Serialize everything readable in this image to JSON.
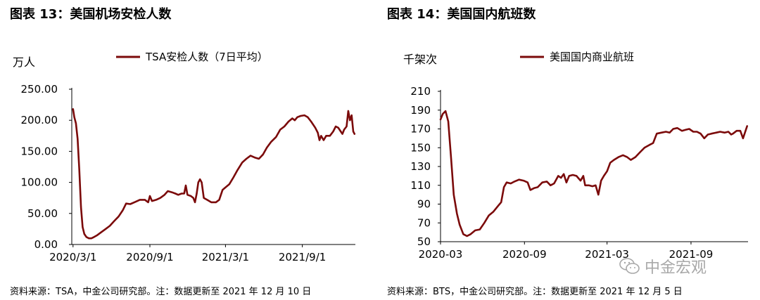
{
  "figures": [
    {
      "title": "图表 13：美国机场安检人数",
      "source": "资料来源：TSA，中金公司研究部。注：数据更新至 2021 年 12 月 10 日"
    },
    {
      "title": "图表 14：美国国内航班数",
      "source": "资料来源：BTS，中金公司研究部。注：数据更新至 2021 年 12 月 5 日"
    }
  ],
  "watermark": {
    "text": "中金宏观",
    "icon": "wechat-icon",
    "color": "#9a9a9a"
  },
  "series_color": "#7b0a0a",
  "chart_data": [
    {
      "type": "line",
      "ylabel": "万人",
      "ylim": [
        0,
        250
      ],
      "yticks": [
        "0.00",
        "50.00",
        "100.00",
        "150.00",
        "200.00",
        "250.00"
      ],
      "xticks": [
        "2020/3/1",
        "2020/9/1",
        "2021/3/1",
        "2021/9/1"
      ],
      "legend_position": "top",
      "series": [
        {
          "name": "TSA安检人数（7日平均）",
          "values": [
            [
              "2020-03-01",
              218
            ],
            [
              "2020-03-04",
              205
            ],
            [
              "2020-03-08",
              195
            ],
            [
              "2020-03-12",
              170
            ],
            [
              "2020-03-16",
              120
            ],
            [
              "2020-03-20",
              60
            ],
            [
              "2020-03-24",
              28
            ],
            [
              "2020-03-28",
              17
            ],
            [
              "2020-04-02",
              12
            ],
            [
              "2020-04-08",
              10
            ],
            [
              "2020-04-14",
              10
            ],
            [
              "2020-04-20",
              12
            ],
            [
              "2020-04-28",
              15
            ],
            [
              "2020-05-08",
              20
            ],
            [
              "2020-05-18",
              25
            ],
            [
              "2020-05-28",
              30
            ],
            [
              "2020-06-08",
              38
            ],
            [
              "2020-06-18",
              45
            ],
            [
              "2020-06-28",
              55
            ],
            [
              "2020-07-06",
              66
            ],
            [
              "2020-07-16",
              65
            ],
            [
              "2020-07-26",
              68
            ],
            [
              "2020-08-08",
              72
            ],
            [
              "2020-08-20",
              72
            ],
            [
              "2020-08-28",
              68
            ],
            [
              "2020-09-01",
              78
            ],
            [
              "2020-09-06",
              70
            ],
            [
              "2020-09-16",
              72
            ],
            [
              "2020-09-26",
              75
            ],
            [
              "2020-10-06",
              80
            ],
            [
              "2020-10-14",
              86
            ],
            [
              "2020-10-24",
              84
            ],
            [
              "2020-11-01",
              82
            ],
            [
              "2020-11-08",
              80
            ],
            [
              "2020-11-16",
              82
            ],
            [
              "2020-11-22",
              82
            ],
            [
              "2020-11-26",
              95
            ],
            [
              "2020-11-30",
              80
            ],
            [
              "2020-12-08",
              78
            ],
            [
              "2020-12-14",
              75
            ],
            [
              "2020-12-18",
              68
            ],
            [
              "2020-12-22",
              82
            ],
            [
              "2020-12-26",
              100
            ],
            [
              "2020-12-30",
              105
            ],
            [
              "2021-01-03",
              100
            ],
            [
              "2021-01-08",
              75
            ],
            [
              "2021-01-16",
              72
            ],
            [
              "2021-01-26",
              68
            ],
            [
              "2021-02-06",
              68
            ],
            [
              "2021-02-14",
              72
            ],
            [
              "2021-02-22",
              88
            ],
            [
              "2021-03-01",
              92
            ],
            [
              "2021-03-10",
              97
            ],
            [
              "2021-03-20",
              108
            ],
            [
              "2021-03-30",
              120
            ],
            [
              "2021-04-10",
              132
            ],
            [
              "2021-04-20",
              138
            ],
            [
              "2021-04-30",
              143
            ],
            [
              "2021-05-10",
              140
            ],
            [
              "2021-05-20",
              138
            ],
            [
              "2021-05-30",
              145
            ],
            [
              "2021-06-08",
              156
            ],
            [
              "2021-06-18",
              165
            ],
            [
              "2021-06-30",
              173
            ],
            [
              "2021-07-10",
              185
            ],
            [
              "2021-07-20",
              190
            ],
            [
              "2021-07-30",
              198
            ],
            [
              "2021-08-08",
              203
            ],
            [
              "2021-08-14",
              200
            ],
            [
              "2021-08-20",
              205
            ],
            [
              "2021-08-28",
              207
            ],
            [
              "2021-09-06",
              208
            ],
            [
              "2021-09-14",
              205
            ],
            [
              "2021-09-22",
              198
            ],
            [
              "2021-10-02",
              188
            ],
            [
              "2021-10-08",
              180
            ],
            [
              "2021-10-12",
              168
            ],
            [
              "2021-10-16",
              175
            ],
            [
              "2021-10-22",
              168
            ],
            [
              "2021-10-28",
              175
            ],
            [
              "2021-11-06",
              175
            ],
            [
              "2021-11-14",
              182
            ],
            [
              "2021-11-20",
              190
            ],
            [
              "2021-11-26",
              188
            ],
            [
              "2021-12-02",
              182
            ],
            [
              "2021-12-06",
              178
            ],
            [
              "2021-12-10",
              185
            ],
            [
              "2021-12-16",
              190
            ],
            [
              "2021-12-20",
              215
            ],
            [
              "2021-12-24",
              200
            ],
            [
              "2021-12-28",
              208
            ],
            [
              "2022-01-01",
              182
            ],
            [
              "2022-01-04",
              178
            ]
          ]
        }
      ]
    },
    {
      "type": "line",
      "ylabel": "千架次",
      "ylim": [
        50,
        210
      ],
      "yticks": [
        "50",
        "70",
        "90",
        "110",
        "130",
        "150",
        "170",
        "190",
        "210"
      ],
      "xticks": [
        "2020-03",
        "2020-09",
        "2021-03",
        "2021-09"
      ],
      "legend_position": "top",
      "series": [
        {
          "name": "美国国内商业航班",
          "values": [
            [
              "2020-03-01",
              180
            ],
            [
              "2020-03-06",
              186
            ],
            [
              "2020-03-12",
              189
            ],
            [
              "2020-03-18",
              178
            ],
            [
              "2020-03-24",
              140
            ],
            [
              "2020-03-30",
              100
            ],
            [
              "2020-04-06",
              80
            ],
            [
              "2020-04-12",
              68
            ],
            [
              "2020-04-20",
              58
            ],
            [
              "2020-04-28",
              56
            ],
            [
              "2020-05-06",
              58
            ],
            [
              "2020-05-16",
              62
            ],
            [
              "2020-05-26",
              63
            ],
            [
              "2020-06-05",
              70
            ],
            [
              "2020-06-15",
              78
            ],
            [
              "2020-06-25",
              82
            ],
            [
              "2020-07-05",
              88
            ],
            [
              "2020-07-12",
              92
            ],
            [
              "2020-07-18",
              108
            ],
            [
              "2020-07-24",
              113
            ],
            [
              "2020-08-02",
              112
            ],
            [
              "2020-08-10",
              114
            ],
            [
              "2020-08-20",
              116
            ],
            [
              "2020-08-30",
              115
            ],
            [
              "2020-09-08",
              113
            ],
            [
              "2020-09-14",
              105
            ],
            [
              "2020-09-22",
              107
            ],
            [
              "2020-09-30",
              108
            ],
            [
              "2020-10-10",
              113
            ],
            [
              "2020-10-20",
              114
            ],
            [
              "2020-10-28",
              110
            ],
            [
              "2020-11-05",
              112
            ],
            [
              "2020-11-14",
              120
            ],
            [
              "2020-11-20",
              118
            ],
            [
              "2020-11-26",
              122
            ],
            [
              "2020-12-02",
              113
            ],
            [
              "2020-12-08",
              120
            ],
            [
              "2020-12-16",
              121
            ],
            [
              "2020-12-24",
              120
            ],
            [
              "2021-01-02",
              115
            ],
            [
              "2021-01-08",
              120
            ],
            [
              "2021-01-12",
              110
            ],
            [
              "2021-01-20",
              110
            ],
            [
              "2021-01-28",
              109
            ],
            [
              "2021-02-04",
              110
            ],
            [
              "2021-02-10",
              100
            ],
            [
              "2021-02-16",
              115
            ],
            [
              "2021-02-22",
              120
            ],
            [
              "2021-03-01",
              125
            ],
            [
              "2021-03-08",
              134
            ],
            [
              "2021-03-16",
              137
            ],
            [
              "2021-03-26",
              140
            ],
            [
              "2021-04-05",
              142
            ],
            [
              "2021-04-14",
              140
            ],
            [
              "2021-04-22",
              137
            ],
            [
              "2021-05-02",
              140
            ],
            [
              "2021-05-12",
              145
            ],
            [
              "2021-05-22",
              150
            ],
            [
              "2021-06-02",
              153
            ],
            [
              "2021-06-10",
              155
            ],
            [
              "2021-06-18",
              165
            ],
            [
              "2021-06-28",
              166
            ],
            [
              "2021-07-08",
              167
            ],
            [
              "2021-07-16",
              166
            ],
            [
              "2021-07-24",
              170
            ],
            [
              "2021-08-02",
              171
            ],
            [
              "2021-08-12",
              168
            ],
            [
              "2021-08-20",
              169
            ],
            [
              "2021-08-28",
              170
            ],
            [
              "2021-09-06",
              167
            ],
            [
              "2021-09-14",
              167
            ],
            [
              "2021-09-22",
              165
            ],
            [
              "2021-09-30",
              160
            ],
            [
              "2021-10-08",
              164
            ],
            [
              "2021-10-16",
              165
            ],
            [
              "2021-10-26",
              166
            ],
            [
              "2021-11-04",
              167
            ],
            [
              "2021-11-14",
              166
            ],
            [
              "2021-11-22",
              167
            ],
            [
              "2021-11-28",
              164
            ],
            [
              "2021-12-02",
              165
            ],
            [
              "2021-12-10",
              168
            ],
            [
              "2021-12-18",
              168
            ],
            [
              "2021-12-24",
              160
            ],
            [
              "2022-01-02",
              173
            ]
          ]
        }
      ]
    }
  ]
}
